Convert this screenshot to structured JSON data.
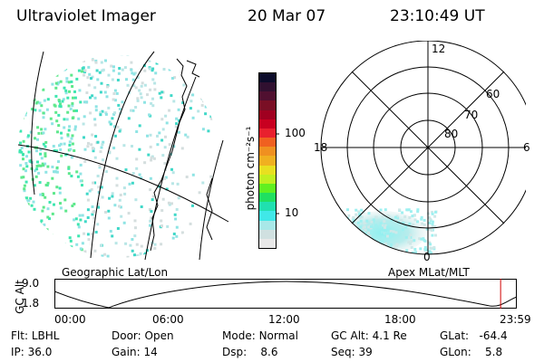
{
  "header": {
    "instrument": "Ultraviolet Imager",
    "date": "20 Mar 07",
    "time": "23:10:49 UT"
  },
  "colorbar": {
    "unit_label": "photon cm⁻²s⁻¹",
    "ticks": [
      "100",
      "10"
    ],
    "colors": [
      "#0b0b2a",
      "#301030",
      "#501030",
      "#7a0f25",
      "#a00020",
      "#c80020",
      "#e8202e",
      "#f06020",
      "#f09020",
      "#f0b020",
      "#e8e020",
      "#c0f020",
      "#60f020",
      "#20e060",
      "#20e0b0",
      "#40e8e8",
      "#a8e8e8",
      "#d0e0e0",
      "#e8e8e8"
    ]
  },
  "geo_panel": {
    "label": "Geographic Lat/Lon"
  },
  "polar_panel": {
    "label": "Apex MLat/MLT",
    "mlt_labels": [
      "12",
      "18",
      "6",
      "0"
    ],
    "mlat_labels": [
      "60",
      "70",
      "80"
    ]
  },
  "altitude_plot": {
    "ylabel": "GC Alt",
    "yticks": [
      "9.0",
      "1.8"
    ],
    "xticks": [
      "00:00",
      "06:00",
      "12:00",
      "18:00",
      "23:59"
    ],
    "current_time_fraction": 0.965,
    "marker_color": "#d00000"
  },
  "info": {
    "flt_label": "Flt:",
    "flt_value": "LBHL",
    "ip_label": "IP:",
    "ip_value": "36.0",
    "door_label": "Door:",
    "door_value": "Open",
    "gain_label": "Gain:",
    "gain_value": "14",
    "mode_label": "Mode:",
    "mode_value": "Normal",
    "dsp_label": "Dsp:",
    "dsp_value": "8.6",
    "gcalt_label": "GC Alt:",
    "gcalt_value": "4.1 Re",
    "seq_label": "Seq:",
    "seq_value": "39",
    "glat_label": "GLat:",
    "glat_value": "-64.4",
    "glon_label": "GLon:",
    "glon_value": "5.8"
  }
}
